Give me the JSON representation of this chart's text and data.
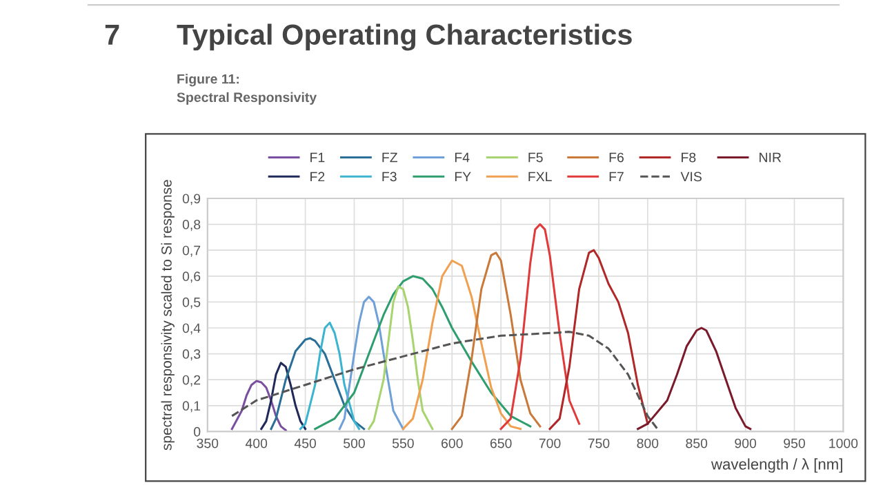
{
  "chart_data": {
    "type": "line",
    "title": "Typical Operating Characteristics",
    "subtitle": "Figure 11:\nSpectral Responsivity",
    "annotations": [
      "7"
    ],
    "xlabel": "wavelength / λ [nm]",
    "ylabel": "spectral responsivity scaled to Si response",
    "xlim": [
      350,
      1000
    ],
    "xticks": [
      350,
      400,
      450,
      500,
      550,
      600,
      650,
      700,
      750,
      800,
      850,
      900,
      950,
      1000
    ],
    "ylim": [
      0,
      0.9
    ],
    "yticks": [
      0,
      {
        "value": 0.1,
        "label": "0,1"
      },
      {
        "value": 0.2,
        "label": "0,2"
      },
      {
        "value": 0.3,
        "label": "0,3"
      },
      {
        "value": 0.4,
        "label": "0,4"
      },
      {
        "value": 0.5,
        "label": "0,5"
      },
      {
        "value": 0.6,
        "label": "0,6"
      },
      {
        "value": 0.7,
        "label": "0,7"
      },
      {
        "value": 0.8,
        "label": "0,8"
      },
      {
        "value": 0.9,
        "label": "0,9"
      }
    ],
    "grid": true,
    "legend": "top",
    "marker": "none",
    "series": [
      {
        "name": "F1",
        "color": "#7b4fa0",
        "x": [
          375,
          385,
          390,
          395,
          400,
          405,
          410,
          415,
          420,
          425,
          430
        ],
        "values": [
          0.01,
          0.08,
          0.14,
          0.18,
          0.195,
          0.19,
          0.17,
          0.12,
          0.06,
          0.02,
          0.005
        ]
      },
      {
        "name": "F2",
        "color": "#1f2a5a",
        "x": [
          405,
          410,
          415,
          420,
          425,
          430,
          435,
          440,
          445,
          450
        ],
        "values": [
          0.01,
          0.04,
          0.12,
          0.22,
          0.265,
          0.25,
          0.18,
          0.1,
          0.04,
          0.01
        ]
      },
      {
        "name": "FZ",
        "color": "#2a6f97",
        "x": [
          415,
          420,
          430,
          440,
          450,
          455,
          460,
          470,
          480,
          490,
          500,
          510
        ],
        "values": [
          0.01,
          0.05,
          0.2,
          0.31,
          0.355,
          0.36,
          0.35,
          0.3,
          0.2,
          0.1,
          0.04,
          0.01
        ]
      },
      {
        "name": "F3",
        "color": "#3bb4d0",
        "x": [
          445,
          450,
          460,
          465,
          470,
          475,
          480,
          485,
          490,
          500,
          505
        ],
        "values": [
          0.01,
          0.03,
          0.18,
          0.3,
          0.4,
          0.42,
          0.38,
          0.3,
          0.18,
          0.04,
          0.01
        ]
      },
      {
        "name": "F4",
        "color": "#6fa0d8",
        "x": [
          485,
          490,
          500,
          505,
          510,
          515,
          520,
          525,
          530,
          540,
          550
        ],
        "values": [
          0.01,
          0.05,
          0.3,
          0.42,
          0.5,
          0.52,
          0.5,
          0.42,
          0.3,
          0.08,
          0.01
        ]
      },
      {
        "name": "FY",
        "color": "#2e9e6e",
        "x": [
          460,
          480,
          500,
          520,
          530,
          540,
          550,
          560,
          570,
          580,
          590,
          600,
          620,
          640,
          660,
          680
        ],
        "values": [
          0.01,
          0.05,
          0.15,
          0.35,
          0.45,
          0.53,
          0.58,
          0.6,
          0.59,
          0.55,
          0.48,
          0.4,
          0.27,
          0.15,
          0.06,
          0.02
        ]
      },
      {
        "name": "F5",
        "color": "#a8d46f",
        "x": [
          515,
          520,
          530,
          535,
          540,
          545,
          550,
          555,
          560,
          565,
          570,
          580
        ],
        "values": [
          0.01,
          0.04,
          0.2,
          0.35,
          0.5,
          0.56,
          0.55,
          0.48,
          0.35,
          0.2,
          0.08,
          0.01
        ]
      },
      {
        "name": "FXL",
        "color": "#f0a050",
        "x": [
          550,
          560,
          570,
          580,
          590,
          600,
          610,
          620,
          630,
          640,
          650,
          660,
          670
        ],
        "values": [
          0.01,
          0.05,
          0.2,
          0.42,
          0.6,
          0.66,
          0.64,
          0.52,
          0.34,
          0.17,
          0.07,
          0.02,
          0.01
        ]
      },
      {
        "name": "F6",
        "color": "#c97a3a",
        "x": [
          600,
          610,
          620,
          630,
          640,
          645,
          650,
          660,
          670,
          680,
          690
        ],
        "values": [
          0.01,
          0.06,
          0.28,
          0.55,
          0.68,
          0.69,
          0.66,
          0.45,
          0.2,
          0.07,
          0.02
        ]
      },
      {
        "name": "F7",
        "color": "#e03a3a",
        "x": [
          650,
          660,
          670,
          680,
          685,
          690,
          695,
          700,
          710,
          720,
          730
        ],
        "values": [
          0.01,
          0.05,
          0.28,
          0.65,
          0.78,
          0.8,
          0.78,
          0.68,
          0.38,
          0.12,
          0.03
        ]
      },
      {
        "name": "F8",
        "color": "#b02828",
        "x": [
          700,
          710,
          720,
          730,
          740,
          745,
          750,
          760,
          770,
          780,
          790,
          800
        ],
        "values": [
          0.01,
          0.05,
          0.25,
          0.55,
          0.69,
          0.7,
          0.67,
          0.57,
          0.5,
          0.38,
          0.18,
          0.03
        ]
      },
      {
        "name": "VIS",
        "color": "#555555",
        "line_style": "dashed",
        "x": [
          375,
          400,
          450,
          500,
          550,
          600,
          650,
          700,
          720,
          740,
          760,
          780,
          790,
          800,
          810
        ],
        "values": [
          0.06,
          0.12,
          0.18,
          0.24,
          0.29,
          0.34,
          0.37,
          0.38,
          0.385,
          0.37,
          0.32,
          0.22,
          0.14,
          0.06,
          0.01
        ]
      },
      {
        "name": "NIR",
        "color": "#7a1a2a",
        "x": [
          790,
          800,
          820,
          830,
          840,
          850,
          855,
          860,
          870,
          880,
          890,
          900,
          905
        ],
        "values": [
          0.01,
          0.03,
          0.12,
          0.22,
          0.33,
          0.39,
          0.4,
          0.39,
          0.31,
          0.2,
          0.09,
          0.02,
          0.01
        ]
      }
    ]
  }
}
